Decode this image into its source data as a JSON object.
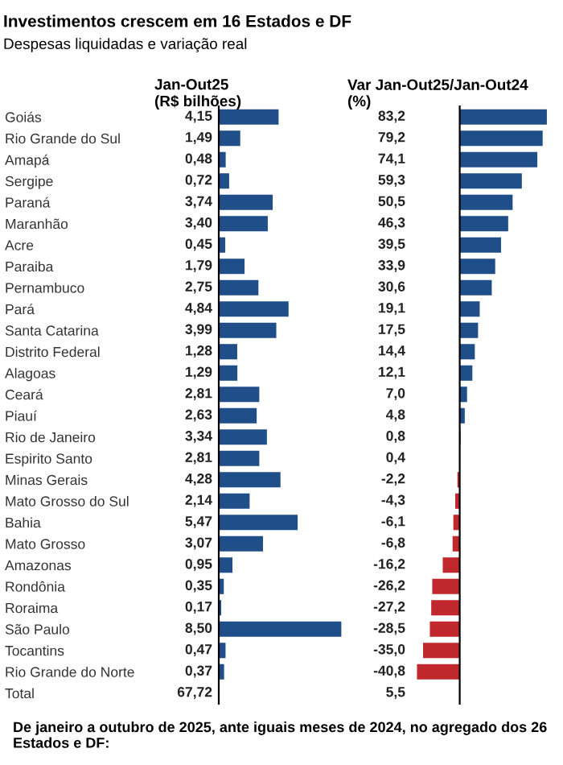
{
  "chart_data": [
    {
      "type": "bar",
      "orientation": "horizontal",
      "title": "Investimentos crescem em 16 Estados e DF",
      "subtitle": "Despesas liquidadas e variação real",
      "xlabel": "Jan-Out25\n(R$ bilhões)",
      "categories": [
        "Goiás",
        "Rio Grande do Sul",
        "Amapá",
        "Sergipe",
        "Paraná",
        "Maranhão",
        "Acre",
        "Paraiba",
        "Pernambuco",
        "Pará",
        "Santa Catarina",
        "Distrito Federal",
        "Alagoas",
        "Ceará",
        "Piauí",
        "Rio de Janeiro",
        "Espirito Santo",
        "Minas Gerais",
        "Mato Grosso do Sul",
        "Bahia",
        "Mato Grosso",
        "Amazonas",
        "Rondônia",
        "Roraima",
        "São Paulo",
        "Tocantins",
        "Rio Grande do Norte",
        "Total"
      ],
      "values": [
        4.15,
        1.49,
        0.48,
        0.72,
        3.74,
        3.4,
        0.45,
        1.79,
        2.75,
        4.84,
        3.99,
        1.28,
        1.29,
        2.81,
        2.63,
        3.34,
        2.81,
        4.28,
        2.14,
        5.47,
        3.07,
        0.95,
        0.35,
        0.17,
        8.5,
        0.47,
        0.37,
        null
      ],
      "value_labels": [
        "4,15",
        "1,49",
        "0,48",
        "0,72",
        "3,74",
        "3,40",
        "0,45",
        "1,79",
        "2,75",
        "4,84",
        "3,99",
        "1,28",
        "1,29",
        "2,81",
        "2,63",
        "3,34",
        "2,81",
        "4,28",
        "2,14",
        "5,47",
        "3,07",
        "0,95",
        "0,35",
        "0,17",
        "8,50",
        "0,47",
        "0,37",
        "67,72"
      ],
      "color": "#1f4e89",
      "annotations": [
        "De janeiro a outubro de 2025, ante iguais meses de 2024, no agregado dos 26 Estados e DF:"
      ]
    },
    {
      "type": "bar",
      "orientation": "horizontal",
      "xlabel": "Var Jan-Out25/Jan-Out24\n(%)",
      "categories": [
        null,
        null,
        null,
        null,
        null,
        null,
        null,
        null,
        null,
        null,
        null,
        null,
        null,
        null,
        null,
        null,
        null,
        null,
        null,
        null,
        null,
        null,
        null,
        null,
        null,
        null,
        null,
        null
      ],
      "values": [
        83.2,
        79.2,
        74.1,
        59.3,
        50.5,
        46.3,
        39.5,
        33.9,
        30.6,
        19.1,
        17.5,
        14.4,
        12.1,
        7.0,
        4.8,
        0.8,
        0.4,
        -2.2,
        -4.3,
        -6.1,
        -6.8,
        -16.2,
        -26.2,
        -27.2,
        -28.5,
        -35.0,
        -40.8,
        null
      ],
      "value_labels": [
        "83,2",
        "79,2",
        "74,1",
        "59,3",
        "50,5",
        "46,3",
        "39,5",
        "33,9",
        "30,6",
        "19,1",
        "17,5",
        "14,4",
        "12,1",
        "7,0",
        "4,8",
        "0,8",
        "0,4",
        "-2,2",
        "-4,3",
        "-6,1",
        "-6,8",
        "-16,2",
        "-26,2",
        "-27,2",
        "-28,5",
        "-35,0",
        "-40,8",
        "5,5"
      ],
      "colors": [
        "#1f4e89",
        "#1f4e89",
        "#1f4e89",
        "#1f4e89",
        "#1f4e89",
        "#1f4e89",
        "#1f4e89",
        "#1f4e89",
        "#1f4e89",
        "#1f4e89",
        "#1f4e89",
        "#1f4e89",
        "#1f4e89",
        "#1f4e89",
        "#1f4e89",
        "#1f4e89",
        "#1f4e89",
        "#c0282d",
        "#c0282d",
        "#c0282d",
        "#c0282d",
        "#c0282d",
        "#c0282d",
        "#c0282d",
        "#c0282d",
        "#c0282d",
        "#c0282d",
        "#1f4e89"
      ]
    }
  ]
}
